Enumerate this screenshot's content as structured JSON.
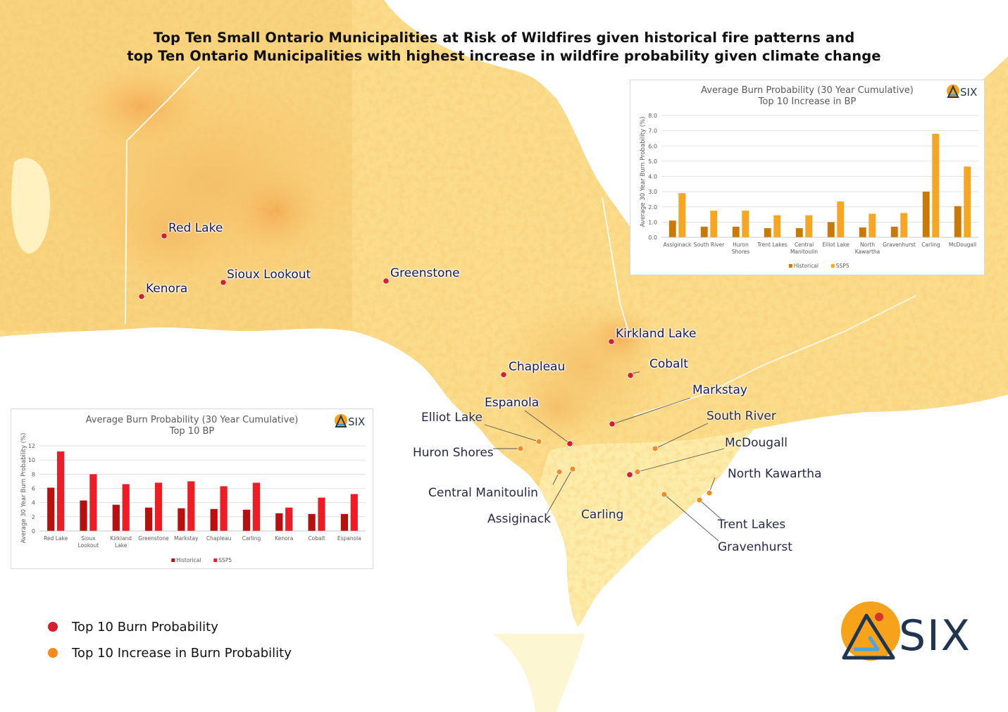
{
  "title": {
    "line1": "Top Ten Small Ontario Municipalities at Risk of Wildfires given historical fire patterns and",
    "line2": "top Ten Ontario Municipalities with highest increase in wildfire probability given climate change"
  },
  "colors": {
    "top_bp_marker": "#d61f2c",
    "increase_marker": "#f58a1f",
    "historical_bar_top": "#b80f0f",
    "ssp5_bar_top": "#ee1c25",
    "historical_bar_increase": "#c97a06",
    "ssp5_bar_increase": "#f7a623",
    "logo_orange": "#f7a21b",
    "logo_navy": "#1f3550"
  },
  "map": {
    "places_top_bp": [
      "Red Lake",
      "Sioux Lookout",
      "Kenora",
      "Greenstone",
      "Kirkland Lake",
      "Chapleau",
      "Cobalt",
      "Markstay",
      "Espanola",
      "Carling"
    ],
    "places_increase": [
      "Elliot Lake",
      "Huron Shores",
      "South River",
      "McDougall",
      "Central Manitoulin",
      "Assiginack",
      "North Kawartha",
      "Trent Lakes",
      "Gravenhurst"
    ]
  },
  "legend": {
    "items": [
      {
        "label": "Top 10 Burn Probability",
        "color": "#d61f2c"
      },
      {
        "label": "Top 10 Increase in Burn Probability",
        "color": "#f58a1f"
      }
    ]
  },
  "logo": {
    "text": "SIX",
    "mini_text": "SIX"
  },
  "chart_data": [
    {
      "type": "bar",
      "title": "Average Burn Probability (30 Year Cumulative)",
      "subtitle": "Top 10 BP",
      "ylabel": "Average 30 Year Burn Probability (%)",
      "xlabel": "",
      "ylim": [
        0,
        12
      ],
      "yticks": [
        0,
        2,
        4,
        6,
        8,
        10,
        12
      ],
      "grid": true,
      "legend_position": "bottom",
      "categories": [
        "Red Lake",
        "Sioux Lookout",
        "Kirkland Lake",
        "Greenstone",
        "Markstay",
        "Chapleau",
        "Carling",
        "Kenora",
        "Cobalt",
        "Espanola"
      ],
      "category_lines": [
        [
          "Red Lake"
        ],
        [
          "Sioux",
          "Lookout"
        ],
        [
          "Kirkland",
          "Lake"
        ],
        [
          "Greenstone"
        ],
        [
          "Markstay"
        ],
        [
          "Chapleau"
        ],
        [
          "Carling"
        ],
        [
          "Kenora"
        ],
        [
          "Cobalt"
        ],
        [
          "Espanola"
        ]
      ],
      "series": [
        {
          "name": "Historical",
          "values": [
            6.1,
            4.3,
            3.7,
            3.3,
            3.2,
            3.1,
            3.0,
            2.5,
            2.4,
            2.4
          ]
        },
        {
          "name": "SSP5",
          "values": [
            11.2,
            8.0,
            6.6,
            6.8,
            7.0,
            6.3,
            6.8,
            3.3,
            4.7,
            5.2
          ]
        }
      ]
    },
    {
      "type": "bar",
      "title": "Average Burn Probability (30 Year Cumulative)",
      "subtitle": "Top 10 Increase in BP",
      "ylabel": "Average 30 Year Burn Probability (%)",
      "xlabel": "",
      "ylim": [
        0,
        8
      ],
      "yticks": [
        0.0,
        1.0,
        2.0,
        3.0,
        4.0,
        5.0,
        6.0,
        7.0,
        8.0
      ],
      "grid": true,
      "legend_position": "bottom",
      "categories": [
        "Assiginack",
        "South River",
        "Huron Shores",
        "Trent Lakes",
        "Central Manitoulin",
        "Elliot Lake",
        "North Kawartha",
        "Gravenhurst",
        "Carling",
        "McDougall"
      ],
      "category_lines": [
        [
          "Assiginack"
        ],
        [
          "South River"
        ],
        [
          "Huron",
          "Shores"
        ],
        [
          "Trent Lakes"
        ],
        [
          "Central",
          "Manitoulin"
        ],
        [
          "Elliot Lake"
        ],
        [
          "North",
          "Kawartha"
        ],
        [
          "Gravenhurst"
        ],
        [
          "Carling"
        ],
        [
          "McDougall"
        ]
      ],
      "series": [
        {
          "name": "Historical",
          "values": [
            1.1,
            0.7,
            0.7,
            0.6,
            0.6,
            1.0,
            0.65,
            0.7,
            3.0,
            2.05
          ]
        },
        {
          "name": "SSP5",
          "values": [
            2.9,
            1.75,
            1.75,
            1.45,
            1.45,
            2.35,
            1.55,
            1.6,
            6.8,
            4.65
          ]
        }
      ]
    }
  ]
}
